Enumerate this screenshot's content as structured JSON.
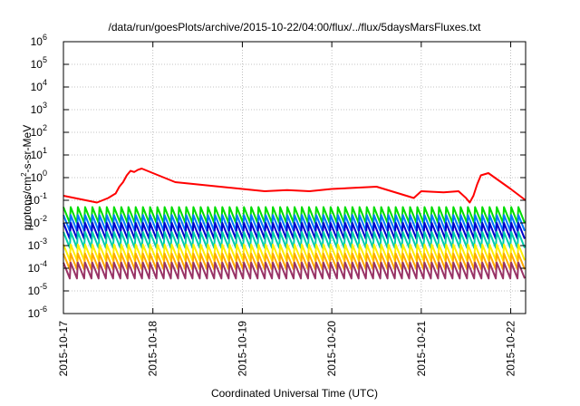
{
  "chart_data": {
    "type": "line",
    "title": "/data/run/goesPlots/archive/2015-10-22/04:00/flux/../flux/5daysMarsFluxes.txt",
    "xlabel": "Coordinated Universal Time (UTC)",
    "ylabel": {
      "base": "protons/cm",
      "sup": "2",
      "rest": "-s-sr-MeV"
    },
    "y_scale": "log",
    "ylim_exp": [
      -6,
      6
    ],
    "y_ticks": [
      {
        "base": "10",
        "exp": "-6"
      },
      {
        "base": "10",
        "exp": "-5"
      },
      {
        "base": "10",
        "exp": "-4"
      },
      {
        "base": "10",
        "exp": "-3"
      },
      {
        "base": "10",
        "exp": "-2"
      },
      {
        "base": "10",
        "exp": "-1"
      },
      {
        "base": "10",
        "exp": "0"
      },
      {
        "base": "10",
        "exp": "1"
      },
      {
        "base": "10",
        "exp": "2"
      },
      {
        "base": "10",
        "exp": "3"
      },
      {
        "base": "10",
        "exp": "4"
      },
      {
        "base": "10",
        "exp": "5"
      },
      {
        "base": "10",
        "exp": "6"
      }
    ],
    "x_ticks": [
      "2015-10-17",
      "2015-10-18",
      "2015-10-19",
      "2015-10-20",
      "2015-10-21",
      "2015-10-22"
    ],
    "xlim": [
      "2015-10-17",
      "2015-10-22 04:00"
    ],
    "grid": true,
    "series": [
      {
        "color": "#ff0000",
        "x": [
          "2015-10-17 00:00",
          "2015-10-17 06:00",
          "2015-10-17 09:00",
          "2015-10-17 12:00",
          "2015-10-17 14:00",
          "2015-10-17 15:00",
          "2015-10-17 16:00",
          "2015-10-17 17:00",
          "2015-10-17 18:00",
          "2015-10-17 19:00",
          "2015-10-17 20:00",
          "2015-10-17 21:00",
          "2015-10-18 00:00",
          "2015-10-18 06:00",
          "2015-10-18 12:00",
          "2015-10-18 18:00",
          "2015-10-19 00:00",
          "2015-10-19 06:00",
          "2015-10-19 12:00",
          "2015-10-19 18:00",
          "2015-10-20 00:00",
          "2015-10-20 06:00",
          "2015-10-20 12:00",
          "2015-10-20 18:00",
          "2015-10-20 22:00",
          "2015-10-21 00:00",
          "2015-10-21 06:00",
          "2015-10-21 10:00",
          "2015-10-21 12:00",
          "2015-10-21 13:00",
          "2015-10-21 14:00",
          "2015-10-21 15:00",
          "2015-10-21 16:00",
          "2015-10-21 18:00",
          "2015-10-22 00:00",
          "2015-10-22 04:00"
        ],
        "y_log10": [
          -0.8,
          -1.0,
          -1.1,
          -0.9,
          -0.7,
          -0.4,
          -0.2,
          0.1,
          0.3,
          0.25,
          0.35,
          0.4,
          0.2,
          -0.2,
          -0.3,
          -0.4,
          -0.5,
          -0.6,
          -0.55,
          -0.6,
          -0.5,
          -0.45,
          -0.4,
          -0.7,
          -0.9,
          -0.6,
          -0.65,
          -0.6,
          -0.9,
          -1.1,
          -0.8,
          -0.3,
          0.1,
          0.2,
          -0.5,
          -1.0
        ]
      },
      {
        "color": "#00dd00",
        "x": [
          "2015-10-17 00:00",
          "2015-10-22 04:00"
        ],
        "y_log10": [
          -1.65,
          -1.65
        ]
      },
      {
        "color": "#0077ff",
        "x": [
          "2015-10-17 00:00",
          "2015-10-22 04:00"
        ],
        "y_log10": [
          -2.0,
          -2.0
        ]
      },
      {
        "color": "#0000cc",
        "x": [
          "2015-10-17 00:00",
          "2015-10-22 04:00"
        ],
        "y_log10": [
          -2.35,
          -2.35
        ]
      },
      {
        "color": "#00ccaa",
        "x": [
          "2015-10-17 00:00",
          "2015-10-22 04:00"
        ],
        "y_log10": [
          -2.75,
          -2.75
        ]
      },
      {
        "color": "#ffee00",
        "x": [
          "2015-10-17 00:00",
          "2015-10-22 04:00"
        ],
        "y_log10": [
          -3.3,
          -3.3
        ]
      },
      {
        "color": "#ffaa00",
        "x": [
          "2015-10-17 00:00",
          "2015-10-22 04:00"
        ],
        "y_log10": [
          -3.7,
          -3.7
        ]
      },
      {
        "color": "#993366",
        "x": [
          "2015-10-17 00:00",
          "2015-10-22 04:00"
        ],
        "y_log10": [
          -4.1,
          -4.1
        ]
      }
    ]
  }
}
